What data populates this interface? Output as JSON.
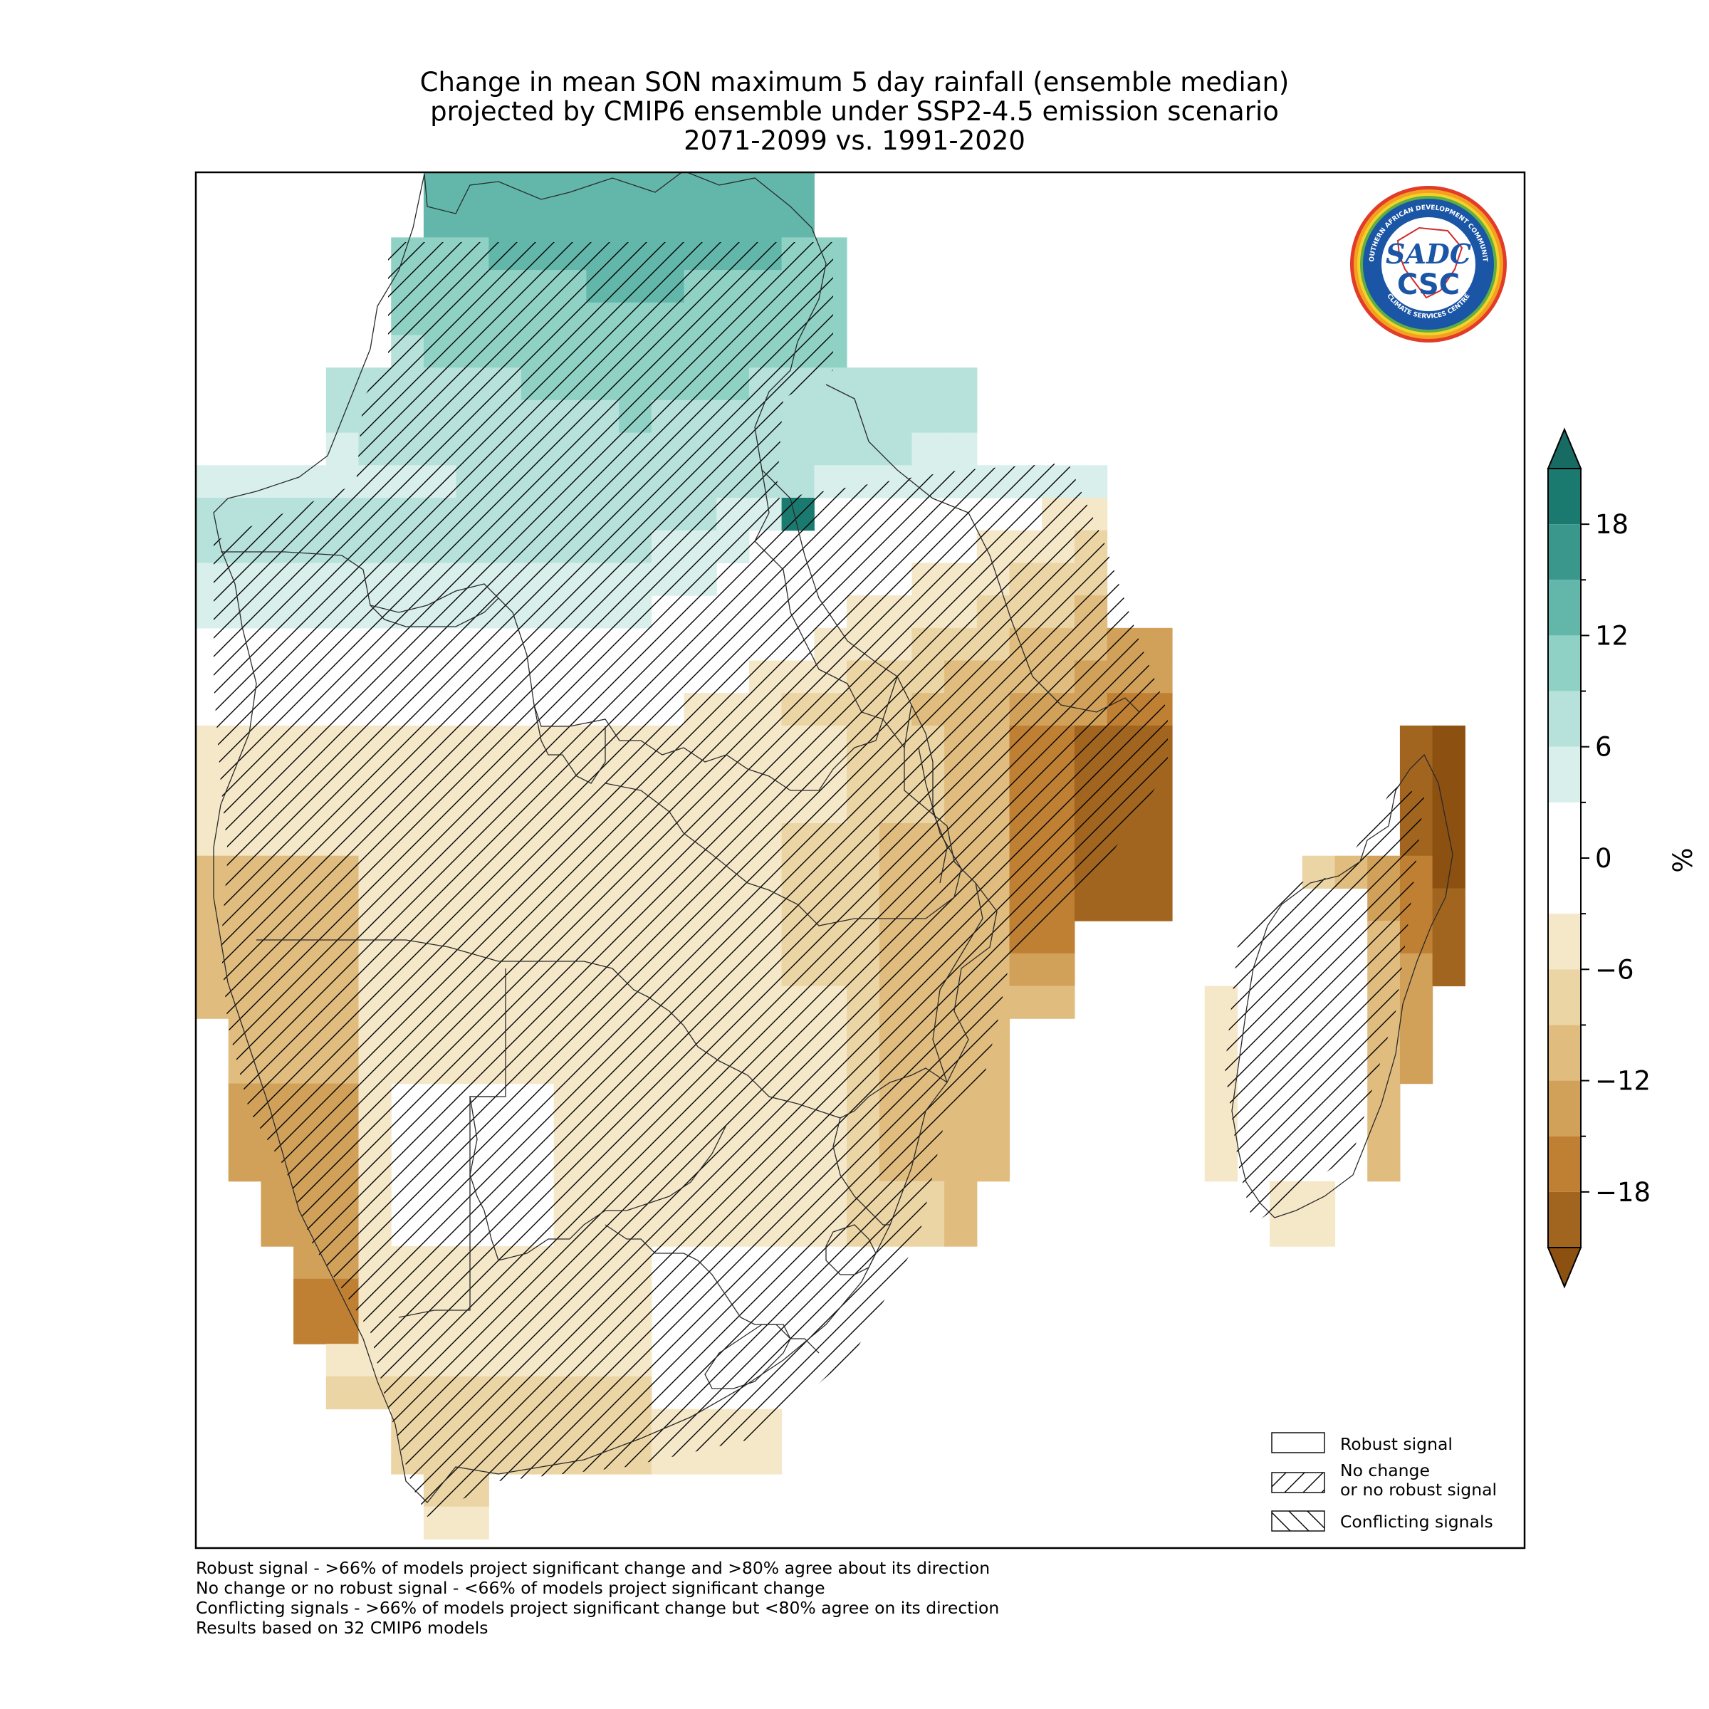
{
  "title": {
    "line1": "Change in mean SON maximum 5 day rainfall (ensemble median)",
    "line2": "projected by CMIP6 ensemble under SSP2-4.5 emission scenario",
    "line3": "2071-2099 vs. 1991-2020"
  },
  "colorbar": {
    "unit": "%",
    "ticks": [
      "18",
      "12",
      "6",
      "0",
      "−6",
      "−12",
      "−18"
    ],
    "tick_values": [
      18,
      12,
      6,
      0,
      -6,
      -12,
      -18
    ],
    "range": [
      -21,
      21
    ],
    "bins": [
      {
        "from": 18,
        "to": 21,
        "color": "#1b7a70"
      },
      {
        "from": 15,
        "to": 18,
        "color": "#3a978b"
      },
      {
        "from": 12,
        "to": 15,
        "color": "#62b7aa"
      },
      {
        "from": 9,
        "to": 12,
        "color": "#8fd2c5"
      },
      {
        "from": 6,
        "to": 9,
        "color": "#b6e2db"
      },
      {
        "from": 3,
        "to": 6,
        "color": "#d8efeb"
      },
      {
        "from": -3,
        "to": 3,
        "color": "#ffffff"
      },
      {
        "from": -6,
        "to": -3,
        "color": "#f5e8c9"
      },
      {
        "from": -9,
        "to": -6,
        "color": "#ecd5a5"
      },
      {
        "from": -12,
        "to": -9,
        "color": "#e0bd7f"
      },
      {
        "from": -15,
        "to": -12,
        "color": "#d1a15a"
      },
      {
        "from": -18,
        "to": -15,
        "color": "#bf8034"
      },
      {
        "from": -21,
        "to": -18,
        "color": "#a2651f"
      }
    ],
    "extend_min_color": "#8c5010",
    "extend_max_color": "#176b62"
  },
  "legend": {
    "robust": "Robust signal",
    "nochange_line1": "No change",
    "nochange_line2": "or no robust signal",
    "conflicting": "Conflicting signals"
  },
  "notes": {
    "line1": "Robust signal - >66% of models project significant change and >80% agree about its direction",
    "line2": "No change or no robust signal - <66% of models project significant change",
    "line3": "Conflicting signals - >66% of models project significant change but <80% agree on its direction",
    "line4": "Results based on 32 CMIP6 models"
  },
  "logo": {
    "icon": "sadc-csc-logo",
    "top_text": "SOUTHERN AFRICAN DEVELOPMENT COMMUNITY",
    "bottom_text": "CLIMATE SERVICES CENTRE",
    "mark1": "SADC",
    "mark2": "CSC"
  }
}
